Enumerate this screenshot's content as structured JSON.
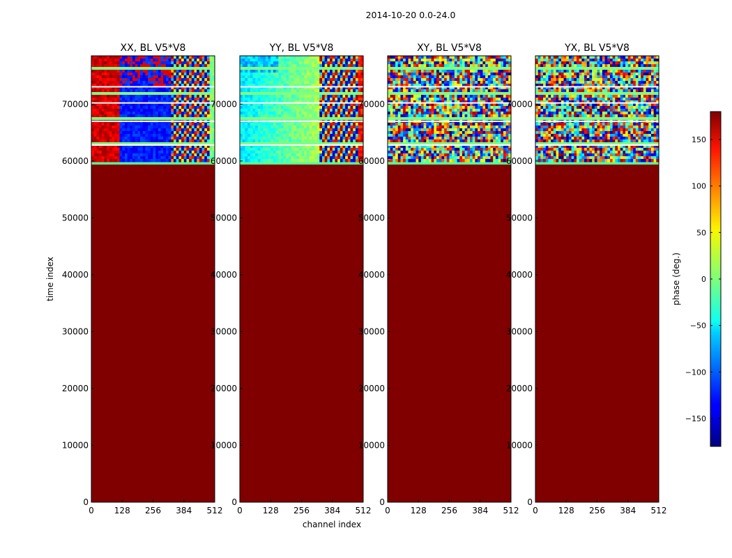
{
  "chart_data": {
    "type": "heatmap",
    "suptitle": "2014-10-20 0.0-24.0",
    "xlabel": "channel index",
    "ylabel": "time index",
    "xlim": [
      0,
      512
    ],
    "ylim": [
      0,
      78500
    ],
    "xticks": [
      0,
      128,
      256,
      384,
      512
    ],
    "yticks": [
      0,
      10000,
      20000,
      30000,
      40000,
      50000,
      60000,
      70000
    ],
    "data_start_index": 59500,
    "fill_value_deg": 180,
    "panels": [
      {
        "title": "XX, BL V5*V8",
        "pattern": "xx"
      },
      {
        "title": "YY, BL V5*V8",
        "pattern": "yy"
      },
      {
        "title": "XY, BL V5*V8",
        "pattern": "noise"
      },
      {
        "title": "YX, BL V5*V8",
        "pattern": "noise"
      }
    ],
    "colorbar": {
      "label": "phase (deg.)",
      "range": [
        -180,
        180
      ],
      "ticks": [
        -150,
        -100,
        -50,
        0,
        50,
        100,
        150
      ],
      "colormap": "jet"
    }
  }
}
